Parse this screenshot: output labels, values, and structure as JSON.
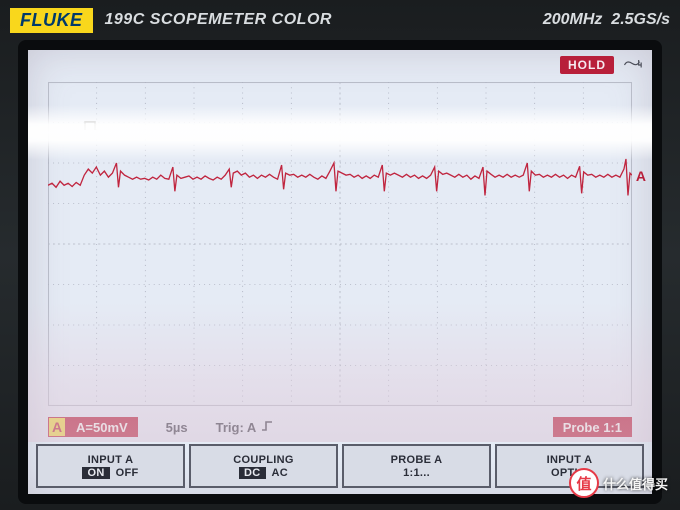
{
  "device": {
    "brand": "FLUKE",
    "model": "199C",
    "product_name": "SCOPEMETER COLOR",
    "bandwidth": "200MHz",
    "sample_rate": "2.5GS/s"
  },
  "status": {
    "mode": "HOLD",
    "mode_bg": "#b81f3a",
    "power_icon": "plug-icon"
  },
  "channel_marker": {
    "label": "A",
    "color": "#b81f3a"
  },
  "readout": {
    "channel_badge": "A",
    "channel_badge_bg": "#f0d840",
    "vdiv": "A=50mV",
    "tdiv": "5µs",
    "trigger": "Trig: A",
    "trigger_edge": "rising",
    "probe": "Probe 1:1",
    "red_bg": "#b81f3a"
  },
  "softkeys": [
    {
      "title": "INPUT A",
      "options": [
        "ON",
        "OFF"
      ],
      "selected": 0
    },
    {
      "title": "COUPLING",
      "options": [
        "DC",
        "AC"
      ],
      "selected": 0
    },
    {
      "title": "PROBE A",
      "options": [
        "1:1..."
      ],
      "selected": -1
    },
    {
      "title": "INPUT A",
      "options": [
        "OPTI..."
      ],
      "selected": -1
    }
  ],
  "grid": {
    "cols": 12,
    "rows": 8,
    "grid_color": "#b8bcc8",
    "dotted_color": "#aeb2c0",
    "bg": "#e5ebf5"
  },
  "waveform": {
    "color": "#c0253f",
    "baseline_row": 2.3,
    "stroke_width": 1.3,
    "points": [
      [
        0,
        2.55
      ],
      [
        4,
        2.5
      ],
      [
        8,
        2.6
      ],
      [
        12,
        2.45
      ],
      [
        16,
        2.55
      ],
      [
        20,
        2.5
      ],
      [
        24,
        2.58
      ],
      [
        28,
        2.48
      ],
      [
        32,
        2.55
      ],
      [
        36,
        2.3
      ],
      [
        40,
        2.15
      ],
      [
        44,
        2.25
      ],
      [
        48,
        2.1
      ],
      [
        52,
        2.3
      ],
      [
        56,
        2.2
      ],
      [
        60,
        2.35
      ],
      [
        64,
        2.25
      ],
      [
        68,
        2.0
      ],
      [
        70,
        2.6
      ],
      [
        72,
        2.2
      ],
      [
        76,
        2.3
      ],
      [
        80,
        2.35
      ],
      [
        84,
        2.4
      ],
      [
        88,
        2.35
      ],
      [
        92,
        2.4
      ],
      [
        96,
        2.38
      ],
      [
        100,
        2.42
      ],
      [
        104,
        2.35
      ],
      [
        108,
        2.4
      ],
      [
        112,
        2.3
      ],
      [
        116,
        2.38
      ],
      [
        120,
        2.4
      ],
      [
        124,
        2.1
      ],
      [
        126,
        2.7
      ],
      [
        128,
        2.3
      ],
      [
        132,
        2.38
      ],
      [
        136,
        2.35
      ],
      [
        140,
        2.32
      ],
      [
        144,
        2.4
      ],
      [
        148,
        2.35
      ],
      [
        152,
        2.4
      ],
      [
        156,
        2.32
      ],
      [
        160,
        2.38
      ],
      [
        164,
        2.42
      ],
      [
        168,
        2.35
      ],
      [
        172,
        2.4
      ],
      [
        176,
        2.3
      ],
      [
        180,
        2.15
      ],
      [
        182,
        2.6
      ],
      [
        184,
        2.25
      ],
      [
        188,
        2.2
      ],
      [
        192,
        2.3
      ],
      [
        196,
        2.25
      ],
      [
        200,
        2.35
      ],
      [
        204,
        2.3
      ],
      [
        208,
        2.38
      ],
      [
        212,
        2.3
      ],
      [
        216,
        2.35
      ],
      [
        220,
        2.28
      ],
      [
        224,
        2.35
      ],
      [
        228,
        2.4
      ],
      [
        232,
        2.05
      ],
      [
        234,
        2.65
      ],
      [
        236,
        2.25
      ],
      [
        240,
        2.3
      ],
      [
        244,
        2.28
      ],
      [
        248,
        2.35
      ],
      [
        252,
        2.3
      ],
      [
        256,
        2.35
      ],
      [
        260,
        2.28
      ],
      [
        264,
        2.35
      ],
      [
        268,
        2.4
      ],
      [
        272,
        2.32
      ],
      [
        276,
        2.38
      ],
      [
        280,
        2.2
      ],
      [
        284,
        2.0
      ],
      [
        286,
        2.7
      ],
      [
        288,
        2.2
      ],
      [
        292,
        2.25
      ],
      [
        296,
        2.3
      ],
      [
        300,
        2.28
      ],
      [
        304,
        2.35
      ],
      [
        308,
        2.3
      ],
      [
        312,
        2.38
      ],
      [
        316,
        2.32
      ],
      [
        320,
        2.38
      ],
      [
        324,
        2.3
      ],
      [
        328,
        2.35
      ],
      [
        332,
        2.05
      ],
      [
        334,
        2.7
      ],
      [
        336,
        2.25
      ],
      [
        340,
        2.3
      ],
      [
        344,
        2.25
      ],
      [
        348,
        2.3
      ],
      [
        352,
        2.35
      ],
      [
        356,
        2.28
      ],
      [
        360,
        2.35
      ],
      [
        364,
        2.3
      ],
      [
        368,
        2.38
      ],
      [
        372,
        2.32
      ],
      [
        376,
        2.38
      ],
      [
        380,
        2.3
      ],
      [
        384,
        2.1
      ],
      [
        386,
        2.7
      ],
      [
        388,
        2.2
      ],
      [
        392,
        2.28
      ],
      [
        396,
        2.25
      ],
      [
        400,
        2.3
      ],
      [
        404,
        2.35
      ],
      [
        408,
        2.28
      ],
      [
        412,
        2.35
      ],
      [
        416,
        2.3
      ],
      [
        420,
        2.4
      ],
      [
        424,
        2.32
      ],
      [
        428,
        2.38
      ],
      [
        432,
        2.1
      ],
      [
        434,
        2.8
      ],
      [
        436,
        2.2
      ],
      [
        440,
        2.28
      ],
      [
        444,
        2.35
      ],
      [
        448,
        2.3
      ],
      [
        452,
        2.35
      ],
      [
        456,
        2.28
      ],
      [
        460,
        2.35
      ],
      [
        464,
        2.3
      ],
      [
        468,
        2.35
      ],
      [
        472,
        2.3
      ],
      [
        476,
        2.0
      ],
      [
        478,
        2.7
      ],
      [
        480,
        2.2
      ],
      [
        484,
        2.3
      ],
      [
        488,
        2.28
      ],
      [
        492,
        2.35
      ],
      [
        496,
        2.3
      ],
      [
        500,
        2.35
      ],
      [
        504,
        2.28
      ],
      [
        508,
        2.35
      ],
      [
        512,
        2.3
      ],
      [
        516,
        2.38
      ],
      [
        520,
        2.3
      ],
      [
        524,
        2.35
      ],
      [
        528,
        2.08
      ],
      [
        530,
        2.75
      ],
      [
        532,
        2.22
      ],
      [
        536,
        2.3
      ],
      [
        540,
        2.28
      ],
      [
        544,
        2.35
      ],
      [
        548,
        2.3
      ],
      [
        552,
        2.35
      ],
      [
        556,
        2.28
      ],
      [
        560,
        2.35
      ],
      [
        564,
        2.3
      ],
      [
        568,
        2.35
      ],
      [
        572,
        2.15
      ],
      [
        574,
        1.9
      ],
      [
        576,
        2.8
      ],
      [
        578,
        2.25
      ],
      [
        580,
        2.3
      ]
    ]
  },
  "watermark": {
    "badge": "值",
    "text": "什么值得买"
  }
}
